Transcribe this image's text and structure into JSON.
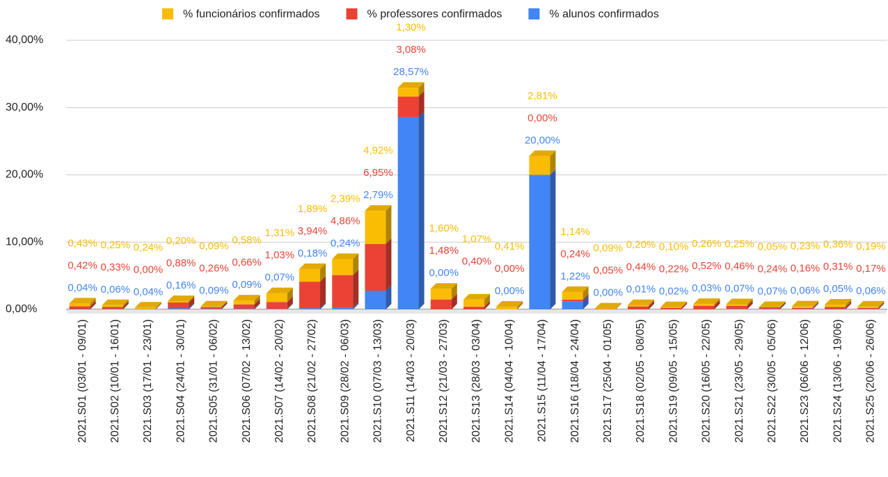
{
  "chart_data": {
    "type": "bar3d_stacked",
    "categories": [
      "2021.S01 (03/01 - 09/01)",
      "2021.S02 (10/01 - 16/01)",
      "2021.S03 (17/01 - 23/01)",
      "2021.S04 (24/01 - 30/01)",
      "2021.S05 (31/01 - 06/02)",
      "2021.S06 (07/02 - 13/02)",
      "2021.S07 (14/02 - 20/02)",
      "2021.S08 (21/02 - 27/02)",
      "2021.S09 (28/02 - 06/03)",
      "2021.S10 (07/03 - 13/03)",
      "2021.S11 (14/03 - 20/03)",
      "2021.S12 (21/03 - 27/03)",
      "2021.S13 (28/03 - 03/04)",
      "2021.S14 (04/04 - 10/04)",
      "2021.S15 (11/04 - 17/04)",
      "2021.S16 (18/04 - 24/04)",
      "2021.S17 (25/04 - 01/05)",
      "2021.S18 (02/05 - 08/05)",
      "2021.S19 (09/05 - 15/05)",
      "2021.S20 (16/05 - 22/05)",
      "2021.S21 (23/05 - 29/05)",
      "2021.S22 (30/05 - 05/06)",
      "2021.S23 (06/06 - 12/06)",
      "2021.S24 (13/06 - 19/06)",
      "2021.S25 (20/06 - 26/06)"
    ],
    "series": [
      {
        "name": "% funcionários confirmados",
        "color": "#fbbc04",
        "values": [
          0.43,
          0.25,
          0.24,
          0.2,
          0.09,
          0.58,
          1.31,
          1.89,
          2.39,
          4.92,
          1.3,
          1.6,
          1.07,
          0.41,
          2.81,
          1.14,
          0.09,
          0.2,
          0.1,
          0.26,
          0.25,
          0.05,
          0.23,
          0.36,
          0.19
        ],
        "value_labels": [
          "0,43%",
          "0,25%",
          "0,24%",
          "0,20%",
          "0,09%",
          "0,58%",
          "1,31%",
          "1,89%",
          "2,39%",
          "4,92%",
          "1,30%",
          "1,60%",
          "1,07%",
          "0,41%",
          "2,81%",
          "1,14%",
          "0,09%",
          "0,20%",
          "0,10%",
          "0,26%",
          "0,25%",
          "0,05%",
          "0,23%",
          "0,36%",
          "0,19%"
        ]
      },
      {
        "name": "% professores confirmados",
        "color": "#ea4335",
        "values": [
          0.42,
          0.33,
          0.0,
          0.88,
          0.26,
          0.66,
          1.03,
          3.94,
          4.86,
          6.95,
          3.08,
          1.48,
          0.4,
          0.0,
          0.0,
          0.24,
          0.05,
          0.44,
          0.22,
          0.52,
          0.46,
          0.24,
          0.16,
          0.31,
          0.17
        ],
        "value_labels": [
          "0,42%",
          "0,33%",
          "0,00%",
          "0,88%",
          "0,26%",
          "0,66%",
          "1,03%",
          "3,94%",
          "4,86%",
          "6,95%",
          "3,08%",
          "1,48%",
          "0,40%",
          "0,00%",
          "0,00%",
          "0,24%",
          "0,05%",
          "0,44%",
          "0,22%",
          "0,52%",
          "0,46%",
          "0,24%",
          "0,16%",
          "0,31%",
          "0,17%"
        ]
      },
      {
        "name": "% alunos confirmados",
        "color": "#4285f4",
        "values": [
          0.04,
          0.06,
          0.04,
          0.16,
          0.09,
          0.09,
          0.07,
          0.18,
          0.24,
          2.79,
          28.57,
          0.0,
          0,
          0.0,
          20.0,
          1.22,
          0.0,
          0.01,
          0.02,
          0.03,
          0.07,
          0.07,
          0.06,
          0.05,
          0.06
        ],
        "value_labels": [
          "0,04%",
          "0,06%",
          "0,04%",
          "0,16%",
          "0,09%",
          "0,09%",
          "0,07%",
          "0,18%",
          "0,24%",
          "2,79%",
          "28,57%",
          "0,00%",
          null,
          "0,00%",
          "20,00%",
          "1,22%",
          "0,00%",
          "0,01%",
          "0,02%",
          "0,03%",
          "0,07%",
          "0,07%",
          "0,06%",
          "0,05%",
          "0,06%"
        ]
      }
    ],
    "ylim": [
      0,
      40
    ],
    "yticks": [
      {
        "value": 0,
        "label": "0,00%"
      },
      {
        "value": 10,
        "label": "10,00%"
      },
      {
        "value": 20,
        "label": "20,00%"
      },
      {
        "value": 30,
        "label": "30,00%"
      },
      {
        "value": 40,
        "label": "40,00%"
      }
    ],
    "grid": true,
    "legend": "top"
  }
}
